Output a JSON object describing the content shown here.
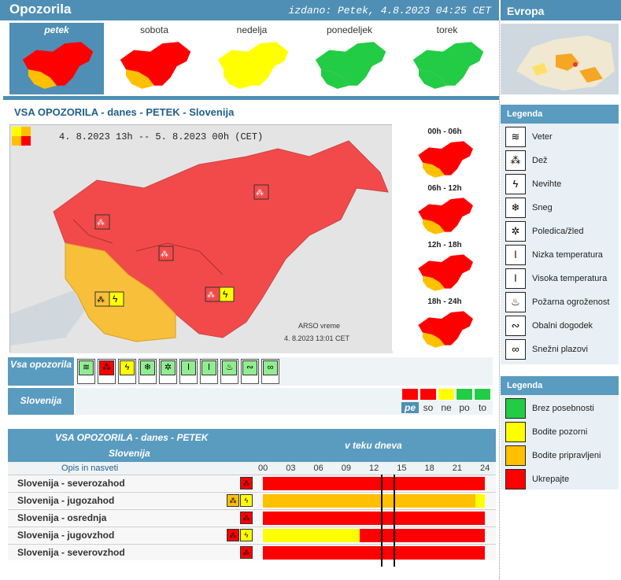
{
  "header": {
    "title": "Opozorila",
    "issued": "izdano: Petek, 4.8.2023 04:25 CET",
    "europe": "Evropa"
  },
  "days": [
    {
      "label": "petek",
      "selected": true,
      "colors": [
        "#ff0000",
        "#ffc000"
      ]
    },
    {
      "label": "sobota",
      "selected": false,
      "colors": [
        "#ff0000",
        "#ffc000"
      ]
    },
    {
      "label": "nedelja",
      "selected": false,
      "colors": [
        "#ffff00",
        "#ffff00"
      ]
    },
    {
      "label": "ponedeljek",
      "selected": false,
      "colors": [
        "#22cc44",
        "#22cc44"
      ]
    },
    {
      "label": "torek",
      "selected": false,
      "colors": [
        "#22cc44",
        "#22cc44"
      ]
    }
  ],
  "main": {
    "heading": "VSA OPOZORILA  -  danes  -  PETEK  -  Slovenija",
    "range": "4. 8.2023 13h  --  5. 8.2023 00h   (CET)",
    "credit1": "ARSO vreme",
    "credit2": "4. 8.2023  13:01 CET"
  },
  "periods": [
    "00h - 06h",
    "06h - 12h",
    "12h - 18h",
    "18h - 24h"
  ],
  "icon_rows": {
    "all_label": "Vsa opozorila",
    "slo_label": "Slovenija",
    "icons": [
      {
        "name": "wind-icon",
        "glyph": "≋",
        "color": "#90ee90"
      },
      {
        "name": "rain-icon",
        "glyph": "⁂",
        "color": "#ff0000"
      },
      {
        "name": "thunderstorm-icon",
        "glyph": "ϟ",
        "color": "#ffff00"
      },
      {
        "name": "snow-icon",
        "glyph": "❄",
        "color": "#90ee90"
      },
      {
        "name": "ice-icon",
        "glyph": "✲",
        "color": "#90ee90"
      },
      {
        "name": "low-temp-icon",
        "glyph": "ǀ",
        "color": "#90ee90"
      },
      {
        "name": "high-temp-icon",
        "glyph": "ǀ",
        "color": "#90ee90"
      },
      {
        "name": "fire-icon",
        "glyph": "♨",
        "color": "#90ee90"
      },
      {
        "name": "coastal-icon",
        "glyph": "∾",
        "color": "#90ee90"
      },
      {
        "name": "avalanche-icon",
        "glyph": "∞",
        "color": "#90ee90"
      }
    ],
    "day_cells": [
      {
        "label": "pe",
        "color": "#ff0000",
        "selected": true
      },
      {
        "label": "so",
        "color": "#ff0000",
        "selected": false
      },
      {
        "label": "ne",
        "color": "#ffff00",
        "selected": false
      },
      {
        "label": "po",
        "color": "#22cc44",
        "selected": false
      },
      {
        "label": "to",
        "color": "#22cc44",
        "selected": false
      }
    ]
  },
  "table": {
    "title": "VSA OPOZORILA - danes - PETEK",
    "region": "Slovenija",
    "during": "v teku dneva",
    "desc": "Opis in nasveti",
    "hours": [
      "00",
      "03",
      "06",
      "09",
      "12",
      "15",
      "18",
      "21",
      "24"
    ],
    "rows": [
      {
        "name": "Slovenija - severozahod",
        "icons": [
          {
            "g": "⁂",
            "c": "#ff0000"
          }
        ],
        "segments": [
          {
            "from": 0,
            "to": 24,
            "color": "#ff0000"
          }
        ]
      },
      {
        "name": "Slovenija - jugozahod",
        "icons": [
          {
            "g": "⁂",
            "c": "#ffc000"
          },
          {
            "g": "ϟ",
            "c": "#ffff00"
          }
        ],
        "segments": [
          {
            "from": 0,
            "to": 23,
            "color": "#ffc000"
          },
          {
            "from": 23,
            "to": 24,
            "color": "#ffff00"
          }
        ]
      },
      {
        "name": "Slovenija - osrednja",
        "icons": [
          {
            "g": "⁂",
            "c": "#ff0000"
          }
        ],
        "segments": [
          {
            "from": 0,
            "to": 24,
            "color": "#ff0000"
          }
        ]
      },
      {
        "name": "Slovenija - jugovzhod",
        "icons": [
          {
            "g": "⁂",
            "c": "#ff0000"
          },
          {
            "g": "ϟ",
            "c": "#ffff00"
          }
        ],
        "segments": [
          {
            "from": 0,
            "to": 10.5,
            "color": "#ffff00"
          },
          {
            "from": 10.5,
            "to": 24,
            "color": "#ff0000"
          }
        ]
      },
      {
        "name": "Slovenija - severovzhod",
        "icons": [
          {
            "g": "⁂",
            "c": "#ff0000"
          }
        ],
        "segments": [
          {
            "from": 0,
            "to": 24,
            "color": "#ff0000"
          }
        ]
      }
    ],
    "markers": [
      12.8,
      14.1
    ]
  },
  "legend1": {
    "title": "Legenda",
    "items": [
      {
        "label": "Veter",
        "glyph": "≋",
        "name": "wind-icon"
      },
      {
        "label": "Dež",
        "glyph": "⁂",
        "name": "rain-icon"
      },
      {
        "label": "Nevihte",
        "glyph": "ϟ",
        "name": "thunderstorm-icon"
      },
      {
        "label": "Sneg",
        "glyph": "❄",
        "name": "snow-icon"
      },
      {
        "label": "Poledica/žled",
        "glyph": "✲",
        "name": "ice-icon"
      },
      {
        "label": "Nizka temperatura",
        "glyph": "ǀ",
        "name": "low-temp-icon"
      },
      {
        "label": "Visoka temperatura",
        "glyph": "ǀ",
        "name": "high-temp-icon"
      },
      {
        "label": "Požarna ogroženost",
        "glyph": "♨",
        "name": "fire-icon"
      },
      {
        "label": "Obalni dogodek",
        "glyph": "∾",
        "name": "coastal-icon"
      },
      {
        "label": "Snežni plazovi",
        "glyph": "∞",
        "name": "avalanche-icon"
      }
    ]
  },
  "legend2": {
    "title": "Legenda",
    "items": [
      {
        "label": "Brez posebnosti",
        "color": "#22cc44"
      },
      {
        "label": "Bodite pozorni",
        "color": "#ffff00"
      },
      {
        "label": "Bodite pripravljeni",
        "color": "#ffc000"
      },
      {
        "label": "Ukrepajte",
        "color": "#ff0000"
      }
    ]
  }
}
